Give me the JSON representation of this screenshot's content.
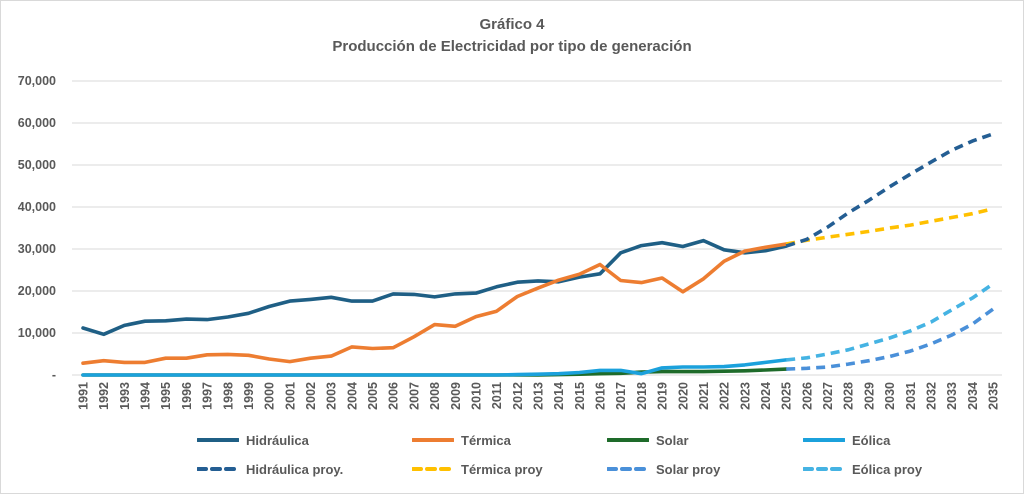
{
  "chart_data": {
    "type": "line",
    "title": "Gráfico 4",
    "subtitle": "Producción de Electricidad por tipo de generación",
    "xlabel": "",
    "ylabel": "",
    "ylim": [
      0,
      70000
    ],
    "yticks": [
      0,
      10000,
      20000,
      30000,
      40000,
      50000,
      60000,
      70000
    ],
    "ytick_labels": [
      "-",
      "10,000",
      "20,000",
      "30,000",
      "40,000",
      "50,000",
      "60,000",
      "70,000"
    ],
    "grid": true,
    "legend_position": "bottom",
    "x": [
      1991,
      1992,
      1993,
      1994,
      1995,
      1996,
      1997,
      1998,
      1999,
      2000,
      2001,
      2002,
      2003,
      2004,
      2005,
      2006,
      2007,
      2008,
      2009,
      2010,
      2011,
      2012,
      2013,
      2014,
      2015,
      2016,
      2017,
      2018,
      2019,
      2020,
      2021,
      2022,
      2023,
      2024,
      2025,
      2026,
      2027,
      2028,
      2029,
      2030,
      2031,
      2032,
      2033,
      2034,
      2035
    ],
    "series": [
      {
        "name": "Hidráulica",
        "color": "#1f5f85",
        "style": "solid",
        "x_start": 1991,
        "values": [
          11200,
          9700,
          11800,
          12800,
          12900,
          13300,
          13200,
          13800,
          14700,
          16300,
          17600,
          18000,
          18500,
          17600,
          17600,
          19300,
          19200,
          18600,
          19300,
          19500,
          21000,
          22100,
          22400,
          22200,
          23300,
          24100,
          29100,
          30800,
          31500,
          30600,
          32000,
          29800,
          29100,
          29600,
          30700
        ]
      },
      {
        "name": "Térmica",
        "color": "#ed7d31",
        "style": "solid",
        "x_start": 1991,
        "values": [
          2800,
          3400,
          3000,
          3000,
          4000,
          4000,
          4800,
          4900,
          4700,
          3800,
          3200,
          4000,
          4500,
          6700,
          6300,
          6500,
          9100,
          12000,
          11600,
          13900,
          15200,
          18700,
          20700,
          22600,
          24000,
          26300,
          22500,
          22000,
          23100,
          19800,
          22900,
          27100,
          29500,
          30400,
          31200
        ]
      },
      {
        "name": "Solar",
        "color": "#1e6b2a",
        "style": "solid",
        "x_start": 1991,
        "values": [
          0,
          0,
          0,
          0,
          0,
          0,
          0,
          0,
          0,
          0,
          0,
          0,
          0,
          0,
          0,
          0,
          0,
          0,
          0,
          0,
          0,
          0,
          0,
          100,
          200,
          300,
          400,
          700,
          800,
          800,
          800,
          900,
          1000,
          1200,
          1400
        ]
      },
      {
        "name": "Eólica",
        "color": "#1ba1dc",
        "style": "solid",
        "x_start": 1991,
        "values": [
          0,
          0,
          0,
          0,
          0,
          0,
          0,
          0,
          0,
          0,
          0,
          0,
          0,
          0,
          0,
          0,
          0,
          0,
          0,
          0,
          0,
          100,
          200,
          300,
          600,
          1100,
          1100,
          300,
          1700,
          1900,
          1900,
          2000,
          2400,
          3000,
          3600
        ]
      },
      {
        "name": "Hidráulica proy.",
        "color": "#245e93",
        "style": "dashed",
        "x_start": 2025,
        "values": [
          30700,
          32300,
          35200,
          38600,
          41600,
          44800,
          47800,
          50700,
          53500,
          55700,
          57400
        ]
      },
      {
        "name": "Térmica proy",
        "color": "#ffc000",
        "style": "dashed",
        "x_start": 2025,
        "values": [
          31200,
          32100,
          32800,
          33500,
          34200,
          35000,
          35700,
          36600,
          37500,
          38400,
          39600
        ]
      },
      {
        "name": "Solar proy",
        "color": "#4a90d9",
        "style": "dashed",
        "x_start": 2025,
        "values": [
          1400,
          1600,
          1900,
          2600,
          3400,
          4400,
          5700,
          7400,
          9500,
          12100,
          15700
        ]
      },
      {
        "name": "Eólica proy",
        "color": "#45b3e3",
        "style": "dashed",
        "x_start": 2025,
        "values": [
          3600,
          4100,
          5000,
          6000,
          7400,
          8800,
          10500,
          12600,
          15500,
          18300,
          21700
        ]
      }
    ]
  },
  "legend": {
    "items": [
      {
        "label": "Hidráulica",
        "color": "#1f5f85",
        "style": "solid"
      },
      {
        "label": "Térmica",
        "color": "#ed7d31",
        "style": "solid"
      },
      {
        "label": "Solar",
        "color": "#1e6b2a",
        "style": "solid"
      },
      {
        "label": "Eólica",
        "color": "#1ba1dc",
        "style": "solid"
      },
      {
        "label": "Hidráulica proy.",
        "color": "#245e93",
        "style": "dashed"
      },
      {
        "label": "Térmica proy",
        "color": "#ffc000",
        "style": "dashed"
      },
      {
        "label": "Solar proy",
        "color": "#4a90d9",
        "style": "dashed"
      },
      {
        "label": "Eólica proy",
        "color": "#45b3e3",
        "style": "dashed"
      }
    ]
  },
  "colors": {
    "text": "#595959",
    "grid": "#d9d9d9",
    "border": "#d9d9d9"
  }
}
